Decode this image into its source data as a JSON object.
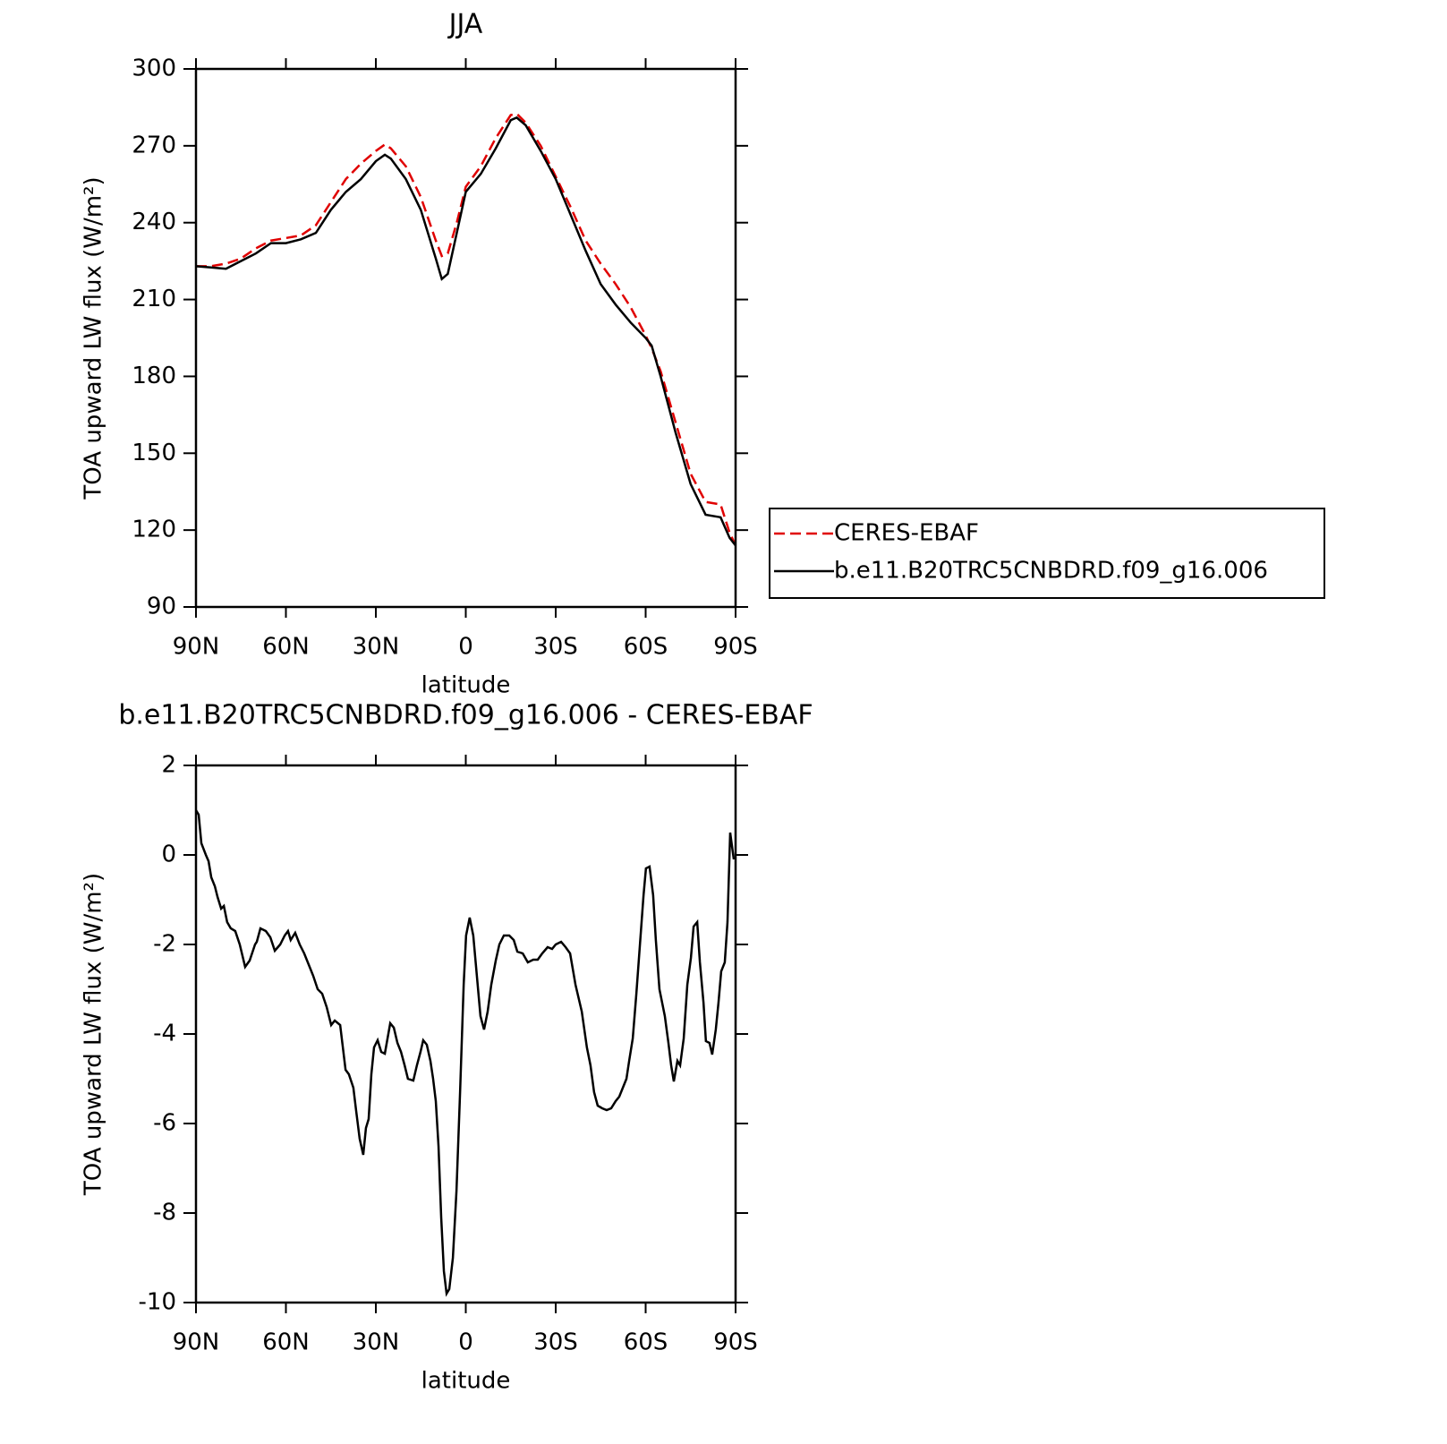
{
  "chart_data": [
    {
      "type": "line",
      "title": "JJA",
      "xlabel": "latitude",
      "ylabel": "TOA upward LW flux (W/m²)",
      "x": [
        90,
        85,
        80,
        75,
        70,
        65,
        60,
        55,
        50,
        45,
        40,
        35,
        30,
        27,
        25,
        20,
        15,
        10,
        8,
        6,
        3,
        0,
        -5,
        -10,
        -15,
        -17,
        -20,
        -25,
        -30,
        -35,
        -40,
        -45,
        -50,
        -55,
        -60,
        -62,
        -65,
        -70,
        -75,
        -80,
        -85,
        -88,
        -90
      ],
      "series": [
        {
          "name": "CERES-EBAF",
          "color": "#e00000",
          "dashed": true,
          "values": [
            223,
            223,
            224,
            226,
            230,
            233,
            234,
            235,
            239,
            248,
            257,
            263,
            268,
            270.5,
            269,
            262,
            250,
            233,
            227,
            228,
            240,
            254,
            262,
            273,
            282,
            282.5,
            279,
            270,
            258,
            246,
            233,
            224,
            216,
            207,
            196,
            191,
            182,
            162,
            142,
            131,
            130,
            119,
            114
          ]
        },
        {
          "name": "b.e11.B20TRC5CNBDRD.f09_g16.006",
          "color": "#000000",
          "dashed": false,
          "values": [
            223,
            222.5,
            222,
            225,
            228,
            232,
            232,
            233.5,
            236,
            245,
            252,
            257,
            264,
            266.5,
            265,
            257,
            245,
            226,
            218,
            220,
            236,
            252,
            259,
            269,
            280,
            281,
            278,
            268,
            257,
            243,
            229,
            216,
            208,
            201,
            195,
            192,
            180,
            158,
            138,
            126,
            125,
            117,
            114
          ]
        }
      ],
      "xlim": [
        90,
        -90
      ],
      "xticks": [
        {
          "value": 90,
          "label": "90N"
        },
        {
          "value": 60,
          "label": "60N"
        },
        {
          "value": 30,
          "label": "30N"
        },
        0,
        {
          "value": -30,
          "label": "30S"
        },
        {
          "value": -60,
          "label": "60S"
        },
        {
          "value": -90,
          "label": "90S"
        }
      ],
      "ylim": [
        90,
        300
      ],
      "yticks": [
        90,
        120,
        150,
        180,
        210,
        240,
        270,
        300
      ]
    },
    {
      "type": "line",
      "title": "b.e11.B20TRC5CNBDRD.f09_g16.006 - CERES-EBAF",
      "xlabel": "latitude",
      "ylabel": "TOA upward LW flux (W/m²)",
      "x": [
        90,
        89.1,
        88.2,
        86.7,
        85.8,
        84.9,
        83.7,
        82.8,
        81.6,
        80.7,
        79.6,
        78.4,
        76.9,
        75.4,
        73.6,
        72.1,
        70.3,
        69.7,
        68.5,
        66.7,
        65.2,
        63.7,
        61.9,
        60.4,
        59.3,
        58.4,
        56.9,
        55.4,
        53.9,
        52.1,
        50.9,
        49.4,
        47.9,
        46.4,
        44.9,
        43.7,
        41.9,
        40.1,
        39.0,
        37.5,
        36.6,
        35.4,
        34.2,
        33.3,
        32.4,
        31.5,
        30.6,
        29.4,
        28.2,
        27.0,
        26.1,
        25.2,
        24.0,
        22.8,
        21.6,
        20.4,
        19.3,
        17.5,
        16.3,
        15.1,
        14.2,
        13.0,
        11.8,
        10.9,
        10.0,
        9.1,
        8.2,
        7.3,
        6.4,
        5.5,
        4.3,
        3.1,
        1.9,
        0.7,
        -0.1,
        -1.3,
        -2.5,
        -3.7,
        -4.9,
        -6.1,
        -7.3,
        -8.5,
        -10.0,
        -11.2,
        -12.7,
        -14.5,
        -16.0,
        -17.2,
        -19.0,
        -20.7,
        -22.5,
        -24.0,
        -25.5,
        -27.3,
        -28.8,
        -30.0,
        -31.8,
        -33.3,
        -34.8,
        -36.6,
        -38.7,
        -40.4,
        -41.6,
        -42.8,
        -44.0,
        -45.5,
        -47.0,
        -48.5,
        -50.0,
        -51.2,
        -52.4,
        -53.6,
        -54.5,
        -55.7,
        -56.9,
        -58.1,
        -59.3,
        -60.1,
        -61.3,
        -62.5,
        -63.4,
        -64.6,
        -66.4,
        -67.6,
        -68.5,
        -69.4,
        -70.6,
        -71.5,
        -72.7,
        -73.9,
        -75.1,
        -76.0,
        -77.2,
        -78.1,
        -79.3,
        -80.1,
        -81.3,
        -82.2,
        -83.4,
        -84.3,
        -85.2,
        -86.4,
        -87.3,
        -88.2,
        -88.8,
        -89.4
      ],
      "series": [
        {
          "name": "b.e11.B20TRC5CNBDRD.f09_g16.006 - CERES-EBAF",
          "color": "#000000",
          "dashed": false,
          "values": [
            1.0,
            0.9,
            0.26,
            0,
            -0.14,
            -0.5,
            -0.7,
            -0.94,
            -1.2,
            -1.14,
            -1.5,
            -1.64,
            -1.7,
            -2.0,
            -2.5,
            -2.36,
            -2.0,
            -1.94,
            -1.64,
            -1.7,
            -1.84,
            -2.14,
            -2.0,
            -1.8,
            -1.7,
            -1.9,
            -1.74,
            -2.0,
            -2.2,
            -2.5,
            -2.7,
            -3.0,
            -3.1,
            -3.4,
            -3.8,
            -3.7,
            -3.8,
            -4.8,
            -4.9,
            -5.2,
            -5.7,
            -6.34,
            -6.7,
            -6.1,
            -5.9,
            -4.9,
            -4.3,
            -4.14,
            -4.4,
            -4.44,
            -4.1,
            -3.76,
            -3.86,
            -4.2,
            -4.4,
            -4.7,
            -5.0,
            -5.04,
            -4.7,
            -4.4,
            -4.14,
            -4.24,
            -4.6,
            -5.0,
            -5.5,
            -6.5,
            -8.1,
            -9.3,
            -9.8,
            -9.7,
            -9.0,
            -7.5,
            -5.3,
            -2.9,
            -1.8,
            -1.4,
            -1.8,
            -2.7,
            -3.6,
            -3.9,
            -3.5,
            -2.9,
            -2.36,
            -2.0,
            -1.8,
            -1.8,
            -1.9,
            -2.16,
            -2.2,
            -2.4,
            -2.34,
            -2.34,
            -2.2,
            -2.06,
            -2.1,
            -2.0,
            -1.94,
            -2.06,
            -2.2,
            -2.9,
            -3.5,
            -4.3,
            -4.7,
            -5.3,
            -5.6,
            -5.66,
            -5.7,
            -5.66,
            -5.5,
            -5.4,
            -5.2,
            -5.0,
            -4.6,
            -4.1,
            -3.1,
            -2.0,
            -0.9,
            -0.3,
            -0.26,
            -0.9,
            -1.9,
            -3.0,
            -3.6,
            -4.2,
            -4.7,
            -5.06,
            -4.6,
            -4.7,
            -4.1,
            -2.9,
            -2.3,
            -1.6,
            -1.5,
            -2.4,
            -3.3,
            -4.16,
            -4.2,
            -4.46,
            -3.9,
            -3.3,
            -2.6,
            -2.4,
            -1.5,
            0.5,
            0.2,
            -0.1
          ]
        }
      ],
      "xlim": [
        90,
        -90
      ],
      "xticks": [
        {
          "value": 90,
          "label": "90N"
        },
        {
          "value": 60,
          "label": "60N"
        },
        {
          "value": 30,
          "label": "30N"
        },
        0,
        {
          "value": -30,
          "label": "30S"
        },
        {
          "value": -60,
          "label": "60S"
        },
        {
          "value": -90,
          "label": "90S"
        }
      ],
      "ylim": [
        -10,
        2
      ],
      "yticks": [
        -10,
        -8,
        -6,
        -4,
        -2,
        0,
        2
      ]
    }
  ]
}
